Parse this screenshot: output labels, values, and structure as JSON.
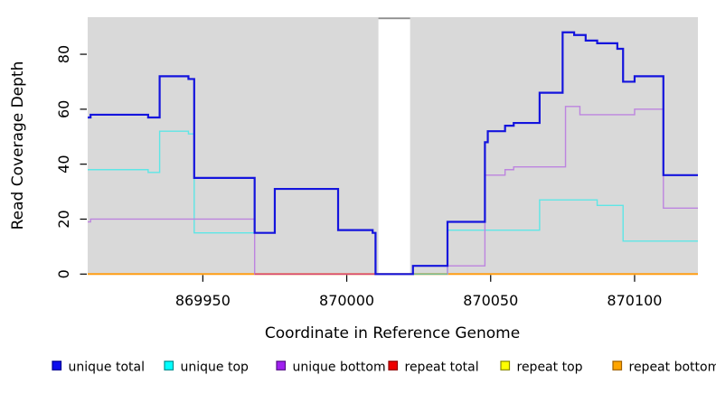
{
  "chart_data": {
    "type": "line",
    "subtype": "step-coverage-plot",
    "title": "",
    "xlabel": "Coordinate in Reference Genome",
    "ylabel": "Read Coverage Depth",
    "xlim": [
      869910,
      870122
    ],
    "ylim": [
      0,
      93.5
    ],
    "x_ticks": [
      869950,
      870000,
      870050,
      870100
    ],
    "y_ticks": [
      0,
      20,
      40,
      60,
      80
    ],
    "grid": false,
    "panel_color": "#d9d9d9",
    "gap_region": {
      "x1": 870011,
      "x2": 870022,
      "border_color": "#8c8c8c"
    },
    "baseline_segments": [
      {
        "x1": 869968,
        "x2": 870010,
        "value": 0,
        "color": "#d6497a"
      },
      {
        "x1": 870023,
        "x2": 870035,
        "value": 0,
        "color": "#76bd92"
      }
    ],
    "series": [
      {
        "id": "repeat-total",
        "name": "repeat total",
        "color": "#e60000",
        "width": 1.4,
        "points": [
          [
            869910,
            0
          ]
        ]
      },
      {
        "id": "repeat-top",
        "name": "repeat top",
        "color": "#ffff00",
        "width": 1.4,
        "points": [
          [
            869910,
            0
          ]
        ]
      },
      {
        "id": "repeat-bottom",
        "name": "repeat bottom",
        "color": "#ff9e14",
        "width": 2,
        "points": [
          [
            869910,
            0
          ]
        ]
      },
      {
        "id": "unique-top",
        "name": "unique top",
        "color": "#5ee6e6",
        "width": 1.4,
        "points": [
          [
            869910,
            38
          ],
          [
            869931,
            37
          ],
          [
            869935,
            52
          ],
          [
            869945,
            51
          ],
          [
            869947,
            15
          ],
          [
            869975,
            31
          ],
          [
            869997,
            16
          ],
          [
            870009,
            15
          ],
          [
            870010,
            0
          ],
          [
            870035,
            16
          ],
          [
            870067,
            27
          ],
          [
            870087,
            25
          ],
          [
            870096,
            12
          ]
        ]
      },
      {
        "id": "unique-bottom",
        "name": "unique bottom",
        "color": "#bd84df",
        "width": 1.4,
        "points": [
          [
            869910,
            19
          ],
          [
            869911,
            20
          ],
          [
            869968,
            0
          ],
          [
            870035,
            3
          ],
          [
            870048,
            36
          ],
          [
            870055,
            38
          ],
          [
            870058,
            39
          ],
          [
            870076,
            61
          ],
          [
            870081,
            58
          ],
          [
            870100,
            60
          ],
          [
            870110,
            24
          ]
        ]
      },
      {
        "id": "unique-total",
        "name": "unique total",
        "color": "#1414dd",
        "width": 2.2,
        "points": [
          [
            869910,
            57
          ],
          [
            869911,
            58
          ],
          [
            869931,
            57
          ],
          [
            869935,
            72
          ],
          [
            869945,
            71
          ],
          [
            869947,
            35
          ],
          [
            869968,
            15
          ],
          [
            869975,
            31
          ],
          [
            869997,
            16
          ],
          [
            870009,
            15
          ],
          [
            870010,
            0
          ],
          [
            870023,
            3
          ],
          [
            870035,
            19
          ],
          [
            870048,
            48
          ],
          [
            870049,
            52
          ],
          [
            870055,
            54
          ],
          [
            870058,
            55
          ],
          [
            870067,
            66
          ],
          [
            870075,
            88
          ],
          [
            870079,
            87
          ],
          [
            870083,
            85
          ],
          [
            870087,
            84
          ],
          [
            870094,
            82
          ],
          [
            870096,
            70
          ],
          [
            870100,
            72
          ],
          [
            870110,
            36
          ]
        ]
      }
    ]
  },
  "legend": {
    "items": [
      {
        "label": "unique total",
        "fill": "#0d0dee",
        "border": "#000091"
      },
      {
        "label": "unique top",
        "fill": "#00ffff",
        "border": "#008f8f"
      },
      {
        "label": "unique bottom",
        "fill": "#a020f0",
        "border": "#571289"
      },
      {
        "label": "repeat total",
        "fill": "#ee0000",
        "border": "#8f0000"
      },
      {
        "label": "repeat top",
        "fill": "#ffff00",
        "border": "#8a8a00"
      },
      {
        "label": "repeat bottom",
        "fill": "#ffa500",
        "border": "#a06000"
      }
    ]
  }
}
